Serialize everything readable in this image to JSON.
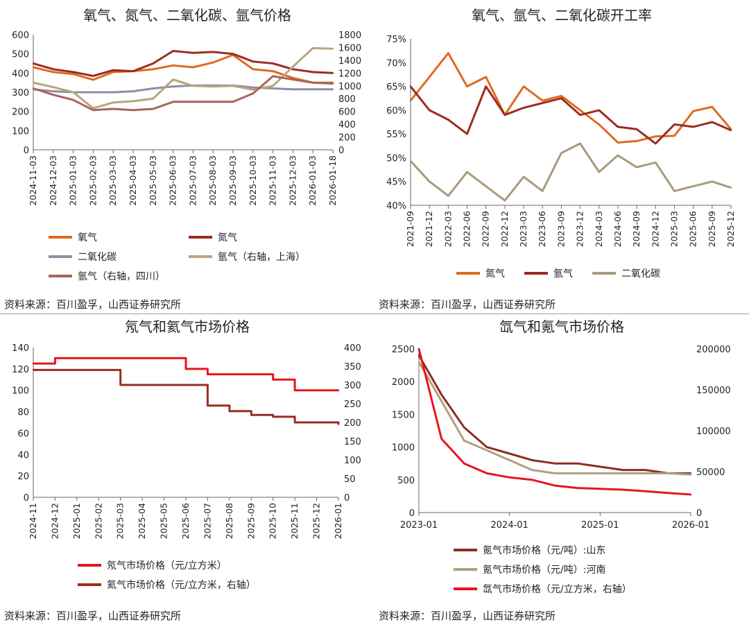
{
  "source_note": "资料来源：百川盈孚，山西证券研究所",
  "panels": [
    {
      "title": "氧气、氮气、二氧化碳、氩气价格",
      "legend": [
        "氧气",
        "氮气",
        "二氧化碳",
        "氩气（右轴，上海）",
        "氩气（右轴，四川）"
      ]
    },
    {
      "title": "氧气、氩气、二氧化碳开工率",
      "legend": [
        "氮气",
        "氩气",
        "二氧化碳"
      ]
    },
    {
      "title": "氖气和氦气市场价格",
      "legend": [
        "氖气市场价格（元/立方米）",
        "氦气市场价格（元/立方米，右轴）"
      ]
    },
    {
      "title": "氙气和氪气市场价格",
      "legend": [
        "氪气市场价格（元/吨）:山东",
        "氪气市场价格（元/吨）:河南",
        "氙气市场价格（元/立方米，右轴）"
      ]
    }
  ],
  "chart_data": [
    {
      "type": "line",
      "title": "氧气、氮气、二氧化碳、氩气价格",
      "x": [
        "2024-11-03",
        "2024-12-03",
        "2025-01-03",
        "2025-02-03",
        "2025-03-03",
        "2025-04-03",
        "2025-05-03",
        "2025-06-03",
        "2025-07-03",
        "2025-08-03",
        "2025-09-03",
        "2025-10-03",
        "2025-11-03",
        "2025-12-03",
        "2026-01-03",
        "2026-01-18"
      ],
      "ylim": [
        0,
        600
      ],
      "yticks": [
        0,
        100,
        200,
        300,
        400,
        500,
        600
      ],
      "y2lim": [
        0,
        1800
      ],
      "y2ticks": [
        0,
        200,
        400,
        600,
        800,
        1000,
        1200,
        1400,
        1600,
        1800
      ],
      "series": [
        {
          "name": "氧气",
          "axis": "left",
          "color": "#E06A1E",
          "values": [
            430,
            405,
            395,
            365,
            405,
            410,
            420,
            440,
            430,
            455,
            495,
            420,
            410,
            375,
            350,
            345
          ]
        },
        {
          "name": "氮气",
          "axis": "left",
          "color": "#9B2C20",
          "values": [
            450,
            420,
            405,
            385,
            415,
            410,
            450,
            515,
            505,
            510,
            500,
            460,
            450,
            420,
            405,
            400
          ]
        },
        {
          "name": "二氧化碳",
          "axis": "left",
          "color": "#8A8FA3",
          "values": [
            315,
            305,
            300,
            300,
            300,
            305,
            320,
            330,
            335,
            335,
            335,
            325,
            320,
            315,
            315,
            315
          ]
        },
        {
          "name": "氩气（右轴，上海）",
          "axis": "right",
          "color": "#B8A67C",
          "values": [
            1050,
            980,
            900,
            650,
            740,
            760,
            800,
            1100,
            1000,
            990,
            1000,
            940,
            1000,
            1300,
            1590,
            1580
          ]
        },
        {
          "name": "氩气（右轴，四川）",
          "axis": "right",
          "color": "#A8645A",
          "values": [
            960,
            860,
            780,
            620,
            640,
            620,
            640,
            750,
            750,
            750,
            750,
            880,
            1150,
            1100,
            1050,
            1050
          ]
        }
      ]
    },
    {
      "type": "line",
      "title": "氧气、氩气、二氧化碳开工率",
      "x": [
        "2021-09",
        "2021-12",
        "2022-03",
        "2022-06",
        "2022-09",
        "2022-12",
        "2023-03",
        "2023-06",
        "2023-09",
        "2023-12",
        "2024-03",
        "2024-06",
        "2024-09",
        "2024-12",
        "2025-03",
        "2025-06",
        "2025-09",
        "2025-12"
      ],
      "ylim": [
        0.4,
        0.75
      ],
      "yticks": [
        "40%",
        "45%",
        "50%",
        "55%",
        "60%",
        "65%",
        "70%",
        "75%"
      ],
      "series": [
        {
          "name": "氮气",
          "color": "#E06A1E",
          "values": [
            0.62,
            0.67,
            0.72,
            0.65,
            0.67,
            0.59,
            0.65,
            0.62,
            0.63,
            0.6,
            0.57,
            0.532,
            0.535,
            0.545,
            0.546,
            0.598,
            0.607,
            0.56
          ]
        },
        {
          "name": "氩气",
          "color": "#9B2C20",
          "values": [
            0.65,
            0.6,
            0.58,
            0.55,
            0.65,
            0.59,
            0.605,
            0.615,
            0.625,
            0.59,
            0.6,
            0.565,
            0.56,
            0.53,
            0.57,
            0.565,
            0.575,
            0.558
          ]
        },
        {
          "name": "二氧化碳",
          "color": "#A89A7C",
          "values": [
            0.493,
            0.45,
            0.42,
            0.47,
            0.44,
            0.41,
            0.46,
            0.43,
            0.51,
            0.53,
            0.47,
            0.505,
            0.48,
            0.49,
            0.43,
            0.44,
            0.45,
            0.437
          ]
        }
      ]
    },
    {
      "type": "line",
      "title": "氖气和氦气市场价格",
      "x": [
        "2024-11",
        "2024-12",
        "2025-01",
        "2025-02",
        "2025-03",
        "2025-04",
        "2025-05",
        "2025-06",
        "2025-07",
        "2025-08",
        "2025-09",
        "2025-10",
        "2025-11",
        "2025-12",
        "2026-01"
      ],
      "ylim": [
        0,
        140
      ],
      "yticks": [
        0,
        20,
        40,
        60,
        80,
        100,
        120,
        140
      ],
      "y2lim": [
        0,
        400
      ],
      "y2ticks": [
        0,
        50,
        100,
        150,
        200,
        250,
        300,
        350,
        400
      ],
      "series": [
        {
          "name": "氖气市场价格（元/立方米）",
          "axis": "left",
          "color": "#E8141E",
          "values": [
            125,
            130,
            130,
            130,
            130,
            130,
            130,
            120,
            115,
            115,
            115,
            110,
            100,
            100,
            100
          ]
        },
        {
          "name": "氦气市场价格（元/立方米，右轴）",
          "axis": "right",
          "color": "#9B2C20",
          "values": [
            340,
            340,
            340,
            340,
            300,
            300,
            300,
            300,
            245,
            230,
            220,
            215,
            200,
            200,
            195
          ]
        }
      ]
    },
    {
      "type": "line",
      "title": "氙气和氪气市场价格",
      "x": [
        "2023-01",
        "2023-04",
        "2023-07",
        "2023-10",
        "2024-01",
        "2024-04",
        "2024-07",
        "2024-10",
        "2025-01",
        "2025-04",
        "2025-07",
        "2025-10",
        "2026-01"
      ],
      "ylim": [
        0,
        2500
      ],
      "yticks": [
        0,
        500,
        1000,
        1500,
        2000,
        2500
      ],
      "y2lim": [
        0,
        200000
      ],
      "y2ticks": [
        0,
        50000,
        100000,
        150000,
        200000
      ],
      "xticks": [
        "2023-01",
        "2024-01",
        "2025-01",
        "2026-01"
      ],
      "series": [
        {
          "name": "氪气市场价格（元/吨）:山东",
          "axis": "left",
          "color": "#8B2E24",
          "values": [
            2400,
            1800,
            1300,
            1000,
            900,
            800,
            750,
            750,
            700,
            650,
            650,
            600,
            600
          ]
        },
        {
          "name": "氪气市场价格（元/吨）:河南",
          "axis": "left",
          "color": "#B0A07E",
          "values": [
            2300,
            1700,
            1100,
            950,
            800,
            650,
            600,
            600,
            600,
            600,
            600,
            600,
            580
          ]
        },
        {
          "name": "氙气市场价格（元/立方米，右轴）",
          "axis": "right",
          "color": "#E8141E",
          "values": [
            200000,
            90000,
            60000,
            48000,
            43000,
            40000,
            33000,
            30000,
            29000,
            28000,
            26000,
            24000,
            22000
          ]
        }
      ]
    }
  ]
}
